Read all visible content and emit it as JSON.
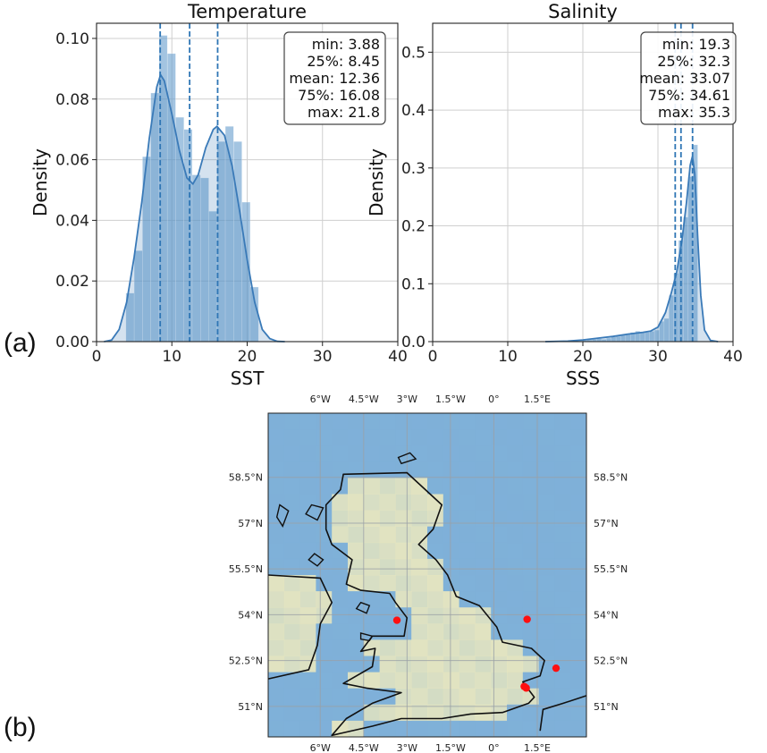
{
  "panel_labels": {
    "a": "(a)",
    "b": "(b)"
  },
  "colors": {
    "hist": "#6a9fcf",
    "kde": "#3a7ab8",
    "vline": "#2f76b5",
    "land": "#e9e7bf",
    "sea": "#7fb0d8",
    "marker": "#ff1010"
  },
  "chart_data": [
    {
      "type": "bar",
      "title": "Temperature",
      "xlabel": "SST",
      "ylabel": "Density",
      "xlim": [
        0,
        40
      ],
      "ylim": [
        0,
        0.105
      ],
      "xticks": [
        "0",
        "10",
        "20",
        "30",
        "40"
      ],
      "yticks": [
        "0.00",
        "0.02",
        "0.04",
        "0.06",
        "0.08",
        "0.10"
      ],
      "ytick_values": [
        0,
        0.02,
        0.04,
        0.06,
        0.08,
        0.1
      ],
      "grid": true,
      "bin_width": 1.1,
      "bins_x": [
        3.9,
        5.0,
        6.1,
        7.2,
        8.3,
        9.4,
        10.5,
        11.6,
        12.7,
        13.8,
        14.9,
        16.0,
        17.1,
        18.2,
        19.3,
        20.4
      ],
      "values": [
        0.016,
        0.03,
        0.061,
        0.082,
        0.101,
        0.095,
        0.074,
        0.07,
        0.055,
        0.054,
        0.043,
        0.066,
        0.071,
        0.066,
        0.046,
        0.018
      ],
      "kde": [
        [
          1,
          0.0
        ],
        [
          2,
          0.0005
        ],
        [
          3,
          0.004
        ],
        [
          4,
          0.013
        ],
        [
          5,
          0.028
        ],
        [
          6,
          0.046
        ],
        [
          7,
          0.067
        ],
        [
          8,
          0.084
        ],
        [
          8.5,
          0.088
        ],
        [
          9,
          0.086
        ],
        [
          10,
          0.075
        ],
        [
          11,
          0.063
        ],
        [
          12,
          0.054
        ],
        [
          12.8,
          0.052
        ],
        [
          13.5,
          0.055
        ],
        [
          14.5,
          0.064
        ],
        [
          15.5,
          0.07
        ],
        [
          16,
          0.071
        ],
        [
          17,
          0.068
        ],
        [
          18,
          0.058
        ],
        [
          19,
          0.043
        ],
        [
          20,
          0.027
        ],
        [
          21,
          0.013
        ],
        [
          22,
          0.004
        ],
        [
          23,
          0.001
        ],
        [
          24,
          0.0001
        ],
        [
          25,
          0
        ]
      ],
      "vlines": [
        8.45,
        12.36,
        16.08
      ],
      "stats": [
        "min: 3.88",
        "25%: 8.45",
        "mean: 12.36",
        "75%: 16.08",
        "max: 21.8"
      ]
    },
    {
      "type": "bar",
      "title": "Salinity",
      "xlabel": "SSS",
      "ylabel": "Density",
      "xlim": [
        0,
        40
      ],
      "ylim": [
        0,
        0.55
      ],
      "xticks": [
        "0",
        "10",
        "20",
        "30",
        "40"
      ],
      "yticks": [
        "0.0",
        "0.1",
        "0.2",
        "0.3",
        "0.4",
        "0.5"
      ],
      "ytick_values": [
        0,
        0.1,
        0.2,
        0.3,
        0.4,
        0.5
      ],
      "grid": true,
      "bin_width": 0.64,
      "bins_x": [
        19.3,
        19.94,
        20.58,
        21.22,
        21.86,
        22.5,
        23.14,
        23.78,
        24.42,
        25.06,
        25.7,
        26.34,
        26.98,
        27.62,
        28.26,
        28.9,
        29.54,
        30.18,
        30.82,
        31.46,
        32.1,
        32.74,
        33.38,
        34.02,
        34.66
      ],
      "values": [
        0.001,
        0.002,
        0.003,
        0.004,
        0.005,
        0.004,
        0.006,
        0.008,
        0.009,
        0.011,
        0.014,
        0.016,
        0.018,
        0.017,
        0.016,
        0.018,
        0.02,
        0.035,
        0.04,
        0.08,
        0.118,
        0.175,
        0.215,
        0.285,
        0.34
      ],
      "kde": [
        [
          15,
          0
        ],
        [
          18,
          0.001
        ],
        [
          20,
          0.003
        ],
        [
          22,
          0.006
        ],
        [
          24,
          0.009
        ],
        [
          26,
          0.013
        ],
        [
          28,
          0.016
        ],
        [
          29,
          0.018
        ],
        [
          30,
          0.025
        ],
        [
          31,
          0.05
        ],
        [
          31.8,
          0.085
        ],
        [
          32.5,
          0.12
        ],
        [
          33.2,
          0.175
        ],
        [
          33.8,
          0.24
        ],
        [
          34.3,
          0.305
        ],
        [
          34.6,
          0.32
        ],
        [
          34.9,
          0.29
        ],
        [
          35.3,
          0.18
        ],
        [
          35.7,
          0.08
        ],
        [
          36.2,
          0.02
        ],
        [
          37,
          0.002
        ],
        [
          38,
          0
        ]
      ],
      "vlines": [
        32.3,
        33.07,
        34.61
      ],
      "stats": [
        "min: 19.3",
        "25%: 32.3",
        "mean: 33.07",
        "75%: 34.61",
        "max: 35.3"
      ]
    }
  ],
  "map": {
    "lon_labels": [
      "6°W",
      "4.5°W",
      "3°W",
      "1.5°W",
      "0°",
      "1.5°E"
    ],
    "lat_labels": [
      "58.5°N",
      "57°N",
      "55.5°N",
      "54°N",
      "52.5°N",
      "51°N"
    ],
    "markers": [
      {
        "lon": -3.35,
        "lat": 53.82
      },
      {
        "lon": 1.15,
        "lat": 53.85
      },
      {
        "lon": 2.15,
        "lat": 52.25
      },
      {
        "lon": 1.05,
        "lat": 51.65
      },
      {
        "lon": 1.12,
        "lat": 51.6
      }
    ]
  }
}
